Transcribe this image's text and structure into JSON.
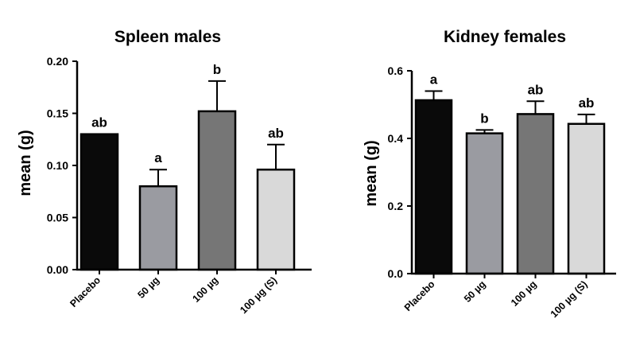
{
  "chart_data": [
    {
      "type": "bar",
      "title": "Spleen males",
      "ylabel": "mean (g)",
      "xlabel": "",
      "ylim": [
        0,
        0.2
      ],
      "yticks": [
        0.0,
        0.05,
        0.1,
        0.15,
        0.2
      ],
      "ytick_labels": [
        "0.00",
        "0.05",
        "0.10",
        "0.15",
        "0.20"
      ],
      "categories": [
        "Placebo",
        "50 µg",
        "100 µg",
        "100 µg (S)"
      ],
      "values": [
        0.13,
        0.08,
        0.152,
        0.096
      ],
      "errors": [
        0.0,
        0.016,
        0.029,
        0.024
      ],
      "letters": [
        "ab",
        "a",
        "b",
        "ab"
      ],
      "colors": [
        "#0a0a0a",
        "#9a9ba1",
        "#767676",
        "#d9d9d9"
      ],
      "grid": false
    },
    {
      "type": "bar",
      "title": "Kidney females",
      "ylabel": "mean (g)",
      "xlabel": "",
      "ylim": [
        0,
        0.6
      ],
      "yticks": [
        0.0,
        0.2,
        0.4,
        0.6
      ],
      "ytick_labels": [
        "0.0",
        "0.2",
        "0.4",
        "0.6"
      ],
      "categories": [
        "Placebo",
        "50 µg",
        "100 µg",
        "100 µg (S)"
      ],
      "values": [
        0.513,
        0.415,
        0.472,
        0.443
      ],
      "errors": [
        0.027,
        0.01,
        0.038,
        0.028
      ],
      "letters": [
        "a",
        "b",
        "ab",
        "ab"
      ],
      "colors": [
        "#0a0a0a",
        "#9a9ba1",
        "#767676",
        "#d9d9d9"
      ],
      "grid": false
    }
  ]
}
